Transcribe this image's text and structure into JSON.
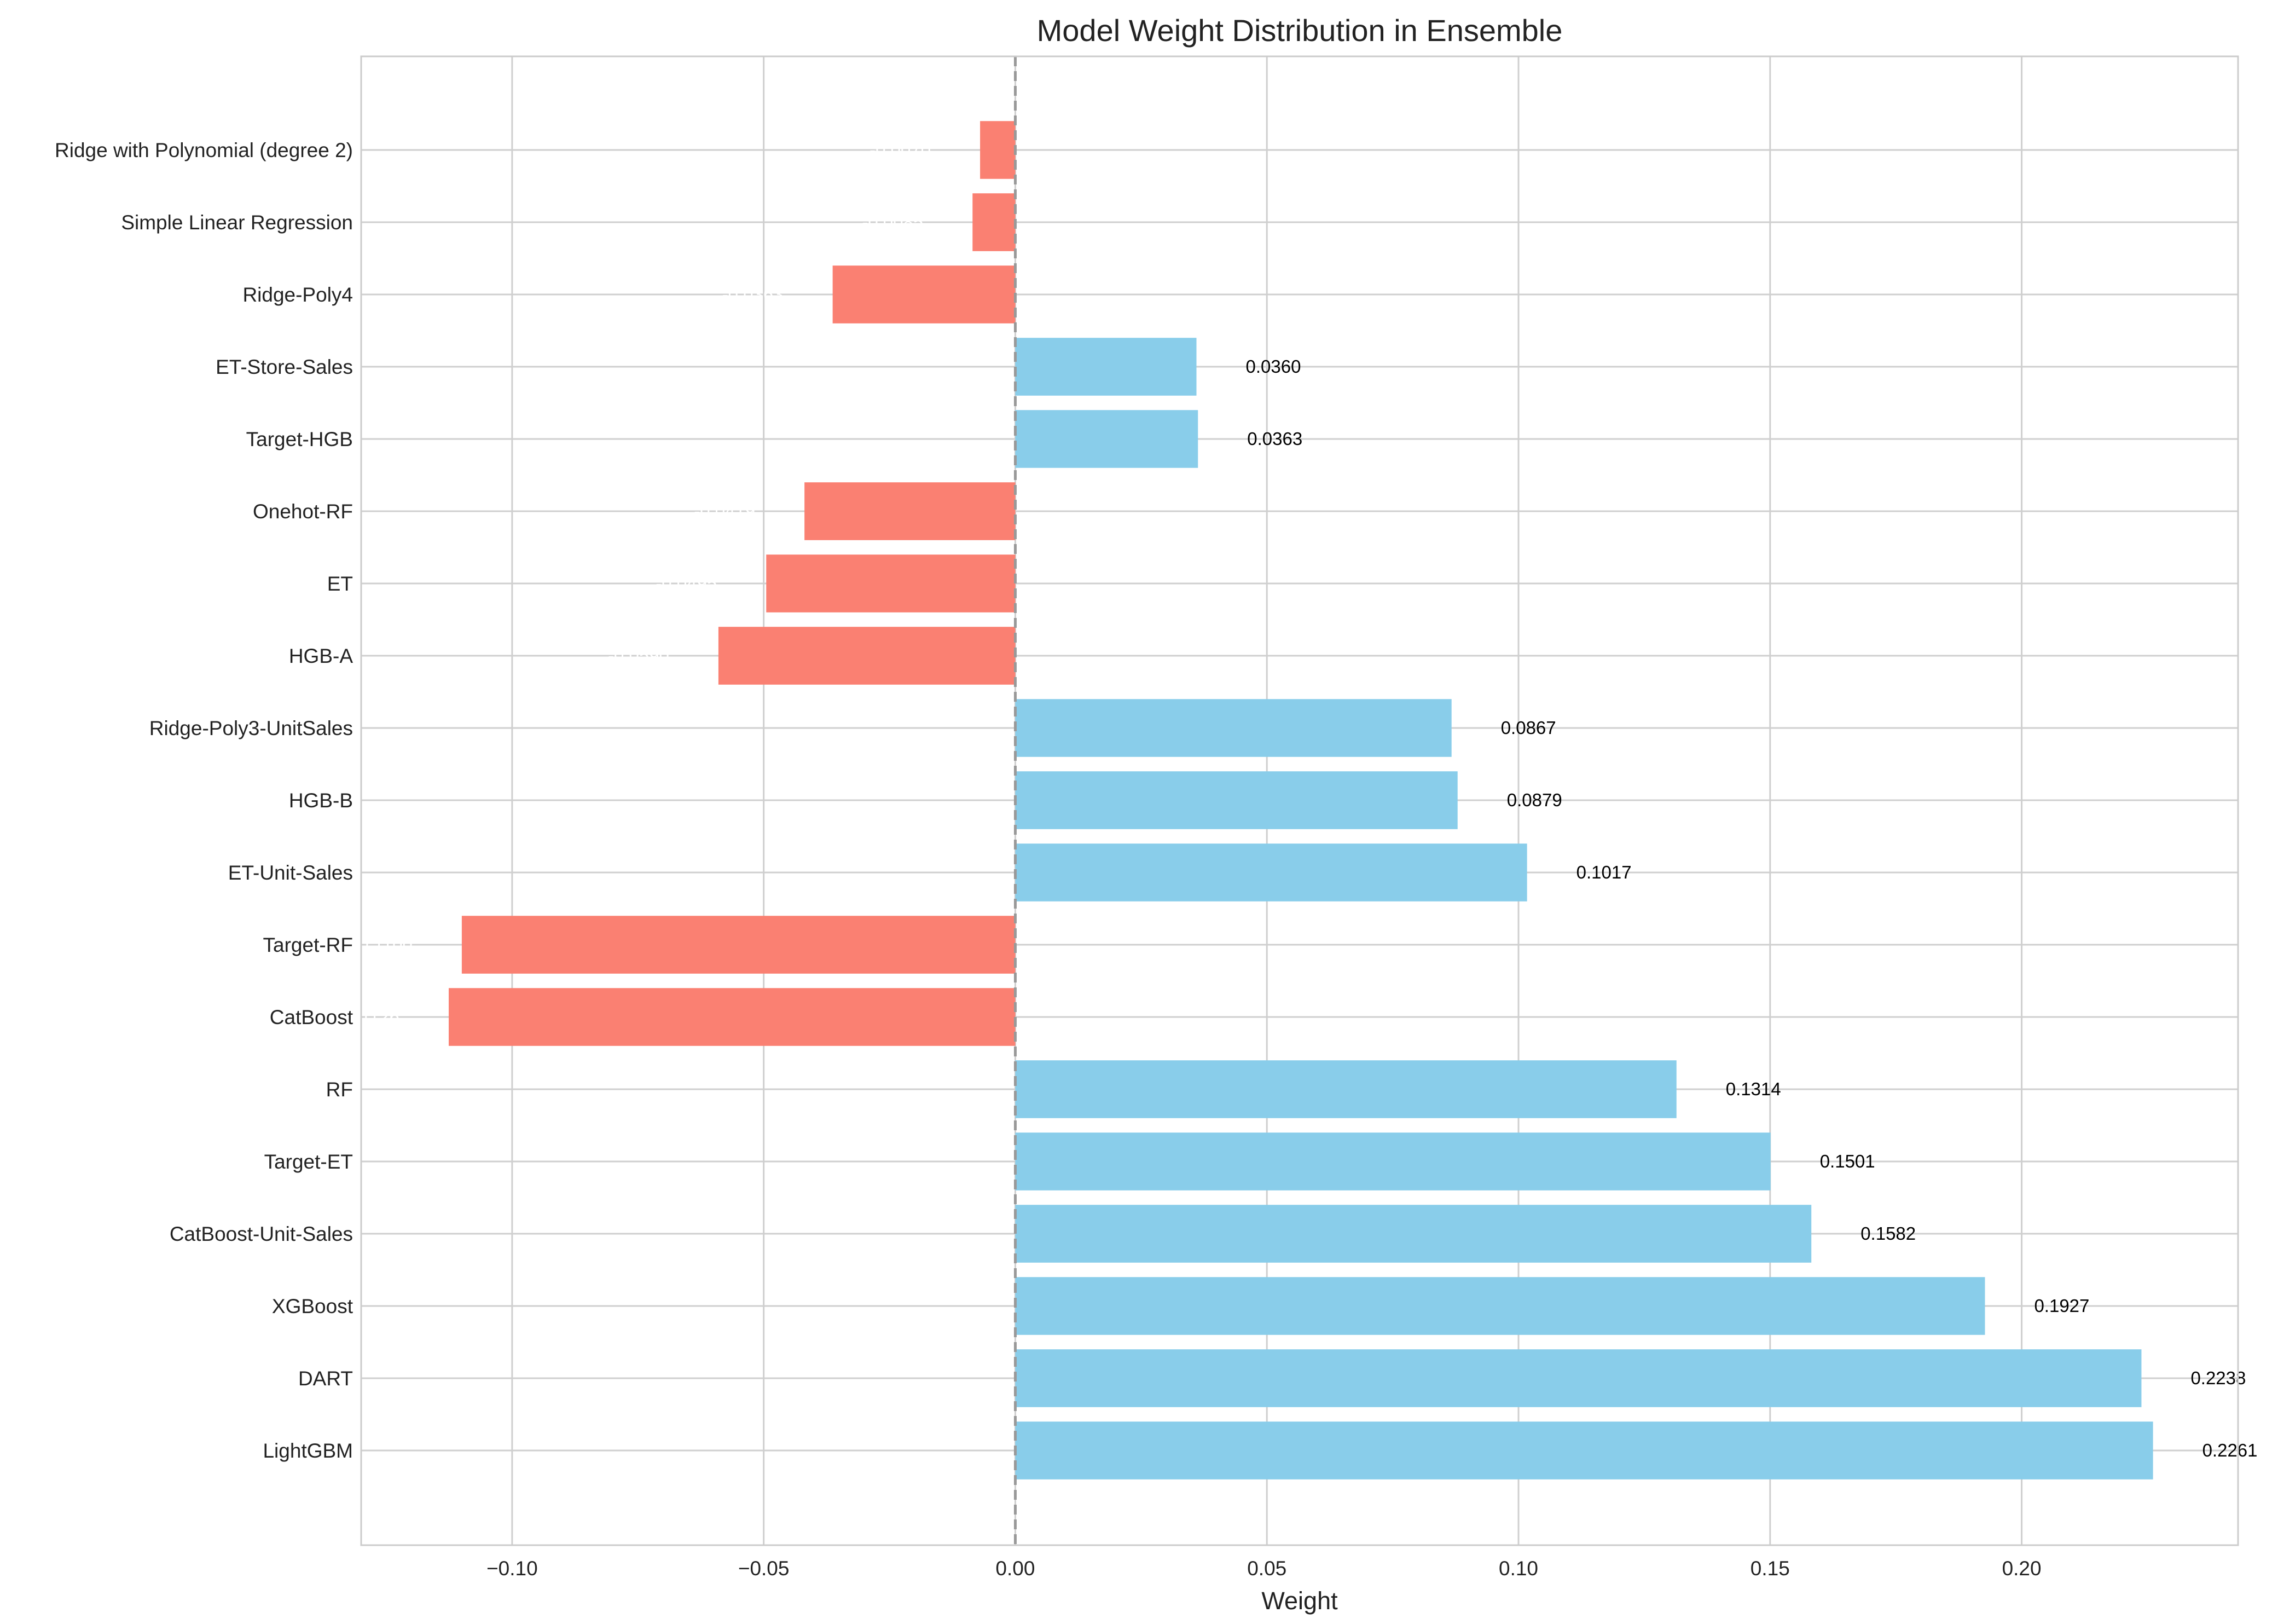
{
  "chart_data": {
    "type": "bar",
    "orientation": "horizontal",
    "title": "Model Weight Distribution in Ensemble",
    "xlabel": "Weight",
    "ylabel": "",
    "xlim": [
      -0.13,
      0.243
    ],
    "xticks": [
      -0.1,
      -0.05,
      0.0,
      0.05,
      0.1,
      0.15,
      0.2
    ],
    "xtick_labels": [
      "−0.10",
      "−0.05",
      "0.00",
      "0.05",
      "0.10",
      "0.15",
      "0.20"
    ],
    "grid": true,
    "zero_line": {
      "style": "dashed",
      "color": "#999999"
    },
    "colors": {
      "positive": "#89CDEA",
      "negative": "#FA8072",
      "positive_label": "#000000",
      "negative_label": "#ffffff"
    },
    "categories": [
      "LightGBM",
      "DART",
      "XGBoost",
      "CatBoost-Unit-Sales",
      "Target-ET",
      "RF",
      "CatBoost",
      "Target-RF",
      "ET-Unit-Sales",
      "HGB-B",
      "Ridge-Poly3-UnitSales",
      "HGB-A",
      "ET",
      "Onehot-RF",
      "Target-HGB",
      "ET-Store-Sales",
      "Ridge-Poly4",
      "Simple Linear Regression",
      "Ridge with Polynomial (degree 2)"
    ],
    "values": [
      0.2261,
      0.2238,
      0.1927,
      0.1582,
      0.1501,
      0.1314,
      -0.1126,
      -0.11,
      0.1017,
      0.0879,
      0.0867,
      -0.059,
      -0.0495,
      -0.0419,
      0.0363,
      0.036,
      -0.0363,
      -0.0085,
      -0.007
    ],
    "value_labels": [
      "0.2261",
      "0.2238",
      "0.1927",
      "0.1582",
      "0.1501",
      "0.1314",
      "-0.1126",
      "-0.1100",
      "0.1017",
      "0.0879",
      "0.0867",
      "-0.0590",
      "-0.0495",
      "-0.0419",
      "0.0363",
      "0.0360",
      "-0.0363",
      "-0.0085",
      "-0.0070"
    ]
  }
}
